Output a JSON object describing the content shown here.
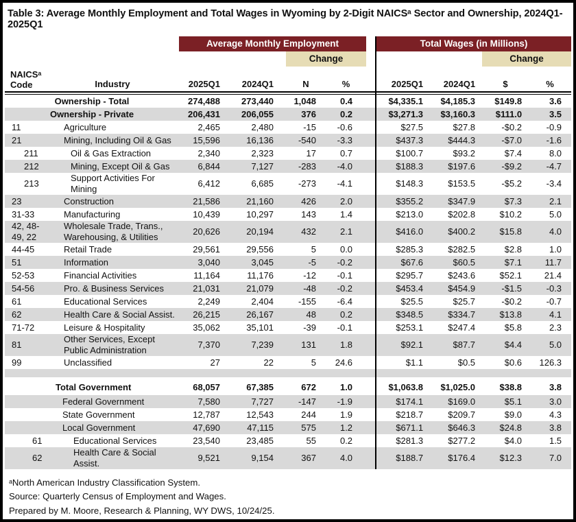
{
  "title": "Table 3: Average Monthly Employment and Total Wages in Wyoming by 2-Digit NAICSᵃ Sector and Ownership, 2024Q1-2025Q1",
  "colors": {
    "maroon_band": "#7B2025",
    "tan_band": "#E6DCB5",
    "row_shade": "#D9D9D9",
    "border": "#000000"
  },
  "table": {
    "groups": {
      "employment": "Average Monthly Employment",
      "wages": "Total Wages (in Millions)",
      "change_left": "Change",
      "change_right": "Change"
    },
    "columns": {
      "code_line1": "NAICSᵃ",
      "code_line2": "Code",
      "industry": "Industry",
      "emp_2025": "2025Q1",
      "emp_2024": "2024Q1",
      "emp_n": "N",
      "emp_pct": "%",
      "wage_2025": "2025Q1",
      "wage_2024": "2024Q1",
      "wage_dollars": "$",
      "wage_pct": "%"
    },
    "rows": [
      {
        "kind": "owner",
        "code": "",
        "industry": "Ownership - Total",
        "e25": "274,488",
        "e24": "273,440",
        "en": "1,048",
        "ep": "0.4",
        "w25": "$4,335.1",
        "w24": "$4,185.3",
        "wd": "$149.8",
        "wp": "3.6",
        "shaded": false
      },
      {
        "kind": "owner",
        "code": "",
        "industry": "Ownership - Private",
        "e25": "206,431",
        "e24": "206,055",
        "en": "376",
        "ep": "0.2",
        "w25": "$3,271.3",
        "w24": "$3,160.3",
        "wd": "$111.0",
        "wp": "3.5",
        "shaded": true
      },
      {
        "kind": "l1",
        "code": "11",
        "industry": "Agriculture",
        "e25": "2,465",
        "e24": "2,480",
        "en": "-15",
        "ep": "-0.6",
        "w25": "$27.5",
        "w24": "$27.8",
        "wd": "-$0.2",
        "wp": "-0.9",
        "shaded": false
      },
      {
        "kind": "l1",
        "code": "21",
        "industry": "Mining, Including Oil & Gas",
        "e25": "15,596",
        "e24": "16,136",
        "en": "-540",
        "ep": "-3.3",
        "w25": "$437.3",
        "w24": "$444.3",
        "wd": "-$7.0",
        "wp": "-1.6",
        "shaded": true
      },
      {
        "kind": "l2",
        "code": "211",
        "industry": "Oil & Gas Extraction",
        "e25": "2,340",
        "e24": "2,323",
        "en": "17",
        "ep": "0.7",
        "w25": "$100.7",
        "w24": "$93.2",
        "wd": "$7.4",
        "wp": "8.0",
        "shaded": false
      },
      {
        "kind": "l2",
        "code": "212",
        "industry": "Mining, Except Oil & Gas",
        "e25": "6,844",
        "e24": "7,127",
        "en": "-283",
        "ep": "-4.0",
        "w25": "$188.3",
        "w24": "$197.6",
        "wd": "-$9.2",
        "wp": "-4.7",
        "shaded": true
      },
      {
        "kind": "l2",
        "code": "213",
        "industry": "Support Activities For Mining",
        "e25": "6,412",
        "e24": "6,685",
        "en": "-273",
        "ep": "-4.1",
        "w25": "$148.3",
        "w24": "$153.5",
        "wd": "-$5.2",
        "wp": "-3.4",
        "shaded": false
      },
      {
        "kind": "l1",
        "code": "23",
        "industry": "Construction",
        "e25": "21,586",
        "e24": "21,160",
        "en": "426",
        "ep": "2.0",
        "w25": "$355.2",
        "w24": "$347.9",
        "wd": "$7.3",
        "wp": "2.1",
        "shaded": true
      },
      {
        "kind": "l1",
        "code": "31-33",
        "industry": "Manufacturing",
        "e25": "10,439",
        "e24": "10,297",
        "en": "143",
        "ep": "1.4",
        "w25": "$213.0",
        "w24": "$202.8",
        "wd": "$10.2",
        "wp": "5.0",
        "shaded": false
      },
      {
        "kind": "l1",
        "code": "42, 48-49, 22",
        "industry": "Wholesale Trade, Trans., Warehousing, & Utilities",
        "e25": "20,626",
        "e24": "20,194",
        "en": "432",
        "ep": "2.1",
        "w25": "$416.0",
        "w24": "$400.2",
        "wd": "$15.8",
        "wp": "4.0",
        "shaded": true
      },
      {
        "kind": "l1",
        "code": "44-45",
        "industry": "Retail Trade",
        "e25": "29,561",
        "e24": "29,556",
        "en": "5",
        "ep": "0.0",
        "w25": "$285.3",
        "w24": "$282.5",
        "wd": "$2.8",
        "wp": "1.0",
        "shaded": false
      },
      {
        "kind": "l1",
        "code": "51",
        "industry": "Information",
        "e25": "3,040",
        "e24": "3,045",
        "en": "-5",
        "ep": "-0.2",
        "w25": "$67.6",
        "w24": "$60.5",
        "wd": "$7.1",
        "wp": "11.7",
        "shaded": true
      },
      {
        "kind": "l1",
        "code": "52-53",
        "industry": "Financial Activities",
        "e25": "11,164",
        "e24": "11,176",
        "en": "-12",
        "ep": "-0.1",
        "w25": "$295.7",
        "w24": "$243.6",
        "wd": "$52.1",
        "wp": "21.4",
        "shaded": false
      },
      {
        "kind": "l1",
        "code": "54-56",
        "industry": "Pro. & Business Services",
        "e25": "21,031",
        "e24": "21,079",
        "en": "-48",
        "ep": "-0.2",
        "w25": "$453.4",
        "w24": "$454.9",
        "wd": "-$1.5",
        "wp": "-0.3",
        "shaded": true
      },
      {
        "kind": "l1",
        "code": "61",
        "industry": "Educational Services",
        "e25": "2,249",
        "e24": "2,404",
        "en": "-155",
        "ep": "-6.4",
        "w25": "$25.5",
        "w24": "$25.7",
        "wd": "-$0.2",
        "wp": "-0.7",
        "shaded": false
      },
      {
        "kind": "l1",
        "code": "62",
        "industry": "Health Care & Social Assist.",
        "e25": "26,215",
        "e24": "26,167",
        "en": "48",
        "ep": "0.2",
        "w25": "$348.5",
        "w24": "$334.7",
        "wd": "$13.8",
        "wp": "4.1",
        "shaded": true
      },
      {
        "kind": "l1",
        "code": "71-72",
        "industry": "Leisure & Hospitality",
        "e25": "35,062",
        "e24": "35,101",
        "en": "-39",
        "ep": "-0.1",
        "w25": "$253.1",
        "w24": "$247.4",
        "wd": "$5.8",
        "wp": "2.3",
        "shaded": false
      },
      {
        "kind": "l1",
        "code": "81",
        "industry": "Other Services, Except Public Administration",
        "e25": "7,370",
        "e24": "7,239",
        "en": "131",
        "ep": "1.8",
        "w25": "$92.1",
        "w24": "$87.7",
        "wd": "$4.4",
        "wp": "5.0",
        "shaded": true
      },
      {
        "kind": "l1",
        "code": "99",
        "industry": "Unclassified",
        "e25": "27",
        "e24": "22",
        "en": "5",
        "ep": "24.6",
        "w25": "$1.1",
        "w24": "$0.5",
        "wd": "$0.6",
        "wp": "126.3",
        "shaded": false
      },
      {
        "kind": "sep",
        "shaded": true
      },
      {
        "kind": "totalgov",
        "code": "",
        "industry": "Total Government",
        "e25": "68,057",
        "e24": "67,385",
        "en": "672",
        "ep": "1.0",
        "w25": "$1,063.8",
        "w24": "$1,025.0",
        "wd": "$38.8",
        "wp": "3.8",
        "shaded": false
      },
      {
        "kind": "gov",
        "code": "",
        "industry": "Federal Government",
        "e25": "7,580",
        "e24": "7,727",
        "en": "-147",
        "ep": "-1.9",
        "w25": "$174.1",
        "w24": "$169.0",
        "wd": "$5.1",
        "wp": "3.0",
        "shaded": true
      },
      {
        "kind": "gov",
        "code": "",
        "industry": "State Government",
        "e25": "12,787",
        "e24": "12,543",
        "en": "244",
        "ep": "1.9",
        "w25": "$218.7",
        "w24": "$209.7",
        "wd": "$9.0",
        "wp": "4.3",
        "shaded": false
      },
      {
        "kind": "gov",
        "code": "",
        "industry": "Local Government",
        "e25": "47,690",
        "e24": "47,115",
        "en": "575",
        "ep": "1.2",
        "w25": "$671.1",
        "w24": "$646.3",
        "wd": "$24.8",
        "wp": "3.8",
        "shaded": true
      },
      {
        "kind": "govl2",
        "code": "61",
        "industry": "Educational Services",
        "e25": "23,540",
        "e24": "23,485",
        "en": "55",
        "ep": "0.2",
        "w25": "$281.3",
        "w24": "$277.2",
        "wd": "$4.0",
        "wp": "1.5",
        "shaded": false
      },
      {
        "kind": "govl2",
        "code": "62",
        "industry": "Health Care & Social Assist.",
        "e25": "9,521",
        "e24": "9,154",
        "en": "367",
        "ep": "4.0",
        "w25": "$188.7",
        "w24": "$176.4",
        "wd": "$12.3",
        "wp": "7.0",
        "shaded": true
      }
    ]
  },
  "footnotes": [
    "ᵃNorth American Industry Classification System.",
    "Source: Quarterly Census of Employment and Wages.",
    "Prepared by M. Moore, Research & Planning, WY DWS, 10/24/25."
  ]
}
